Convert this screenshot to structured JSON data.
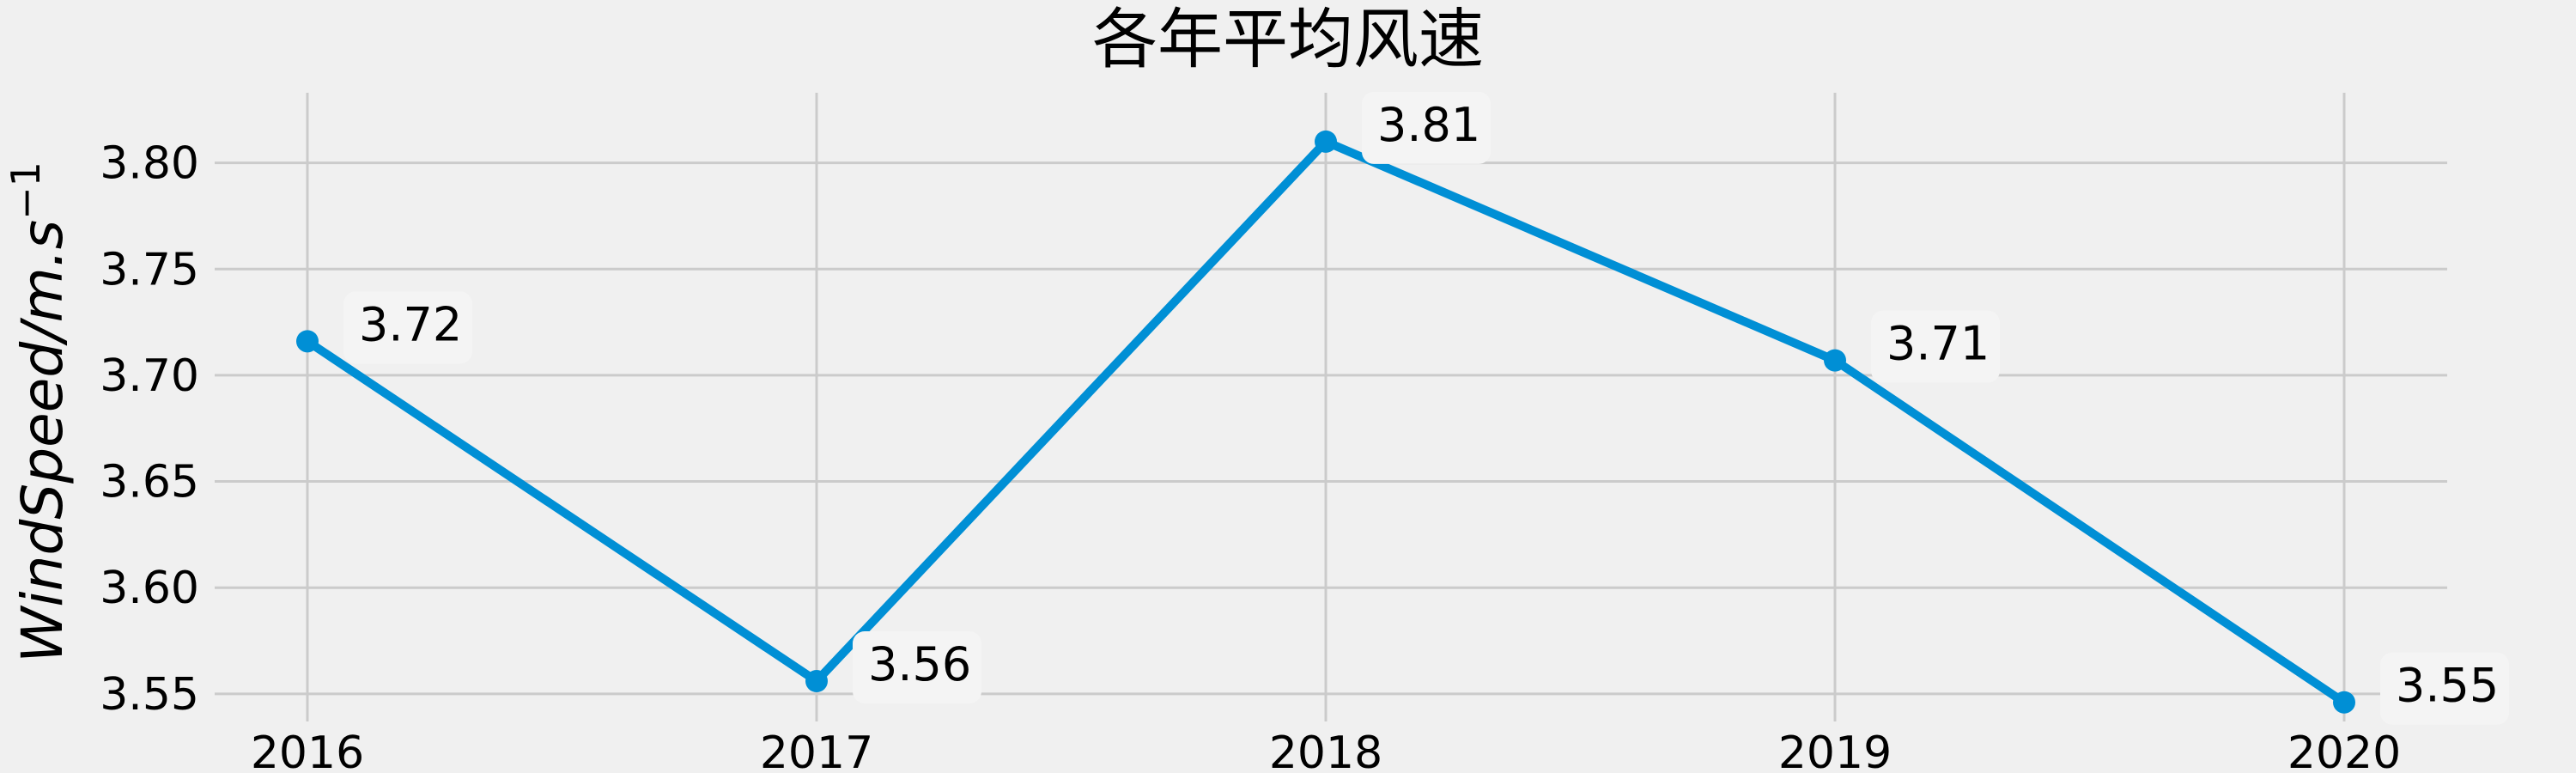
{
  "chart_data": {
    "type": "line",
    "title": "各年平均风速",
    "xlabel": "",
    "ylabel": "WindSpeed/m.s",
    "ylabel_superscript": "−1",
    "categories": [
      "2016",
      "2017",
      "2018",
      "2019",
      "2020"
    ],
    "series": [
      {
        "values": [
          3.716,
          3.556,
          3.81,
          3.707,
          3.546
        ]
      }
    ],
    "data_labels": [
      "3.72",
      "3.56",
      "3.81",
      "3.71",
      "3.55"
    ],
    "yticks": [
      3.55,
      3.6,
      3.65,
      3.7,
      3.75,
      3.8
    ],
    "ytick_labels": [
      "3.55",
      "3.60",
      "3.65",
      "3.70",
      "3.75",
      "3.80"
    ],
    "ylim": [
      3.537,
      3.833
    ],
    "grid": true,
    "line_color": "#008fd5",
    "background_color": "#f0f0f0"
  }
}
